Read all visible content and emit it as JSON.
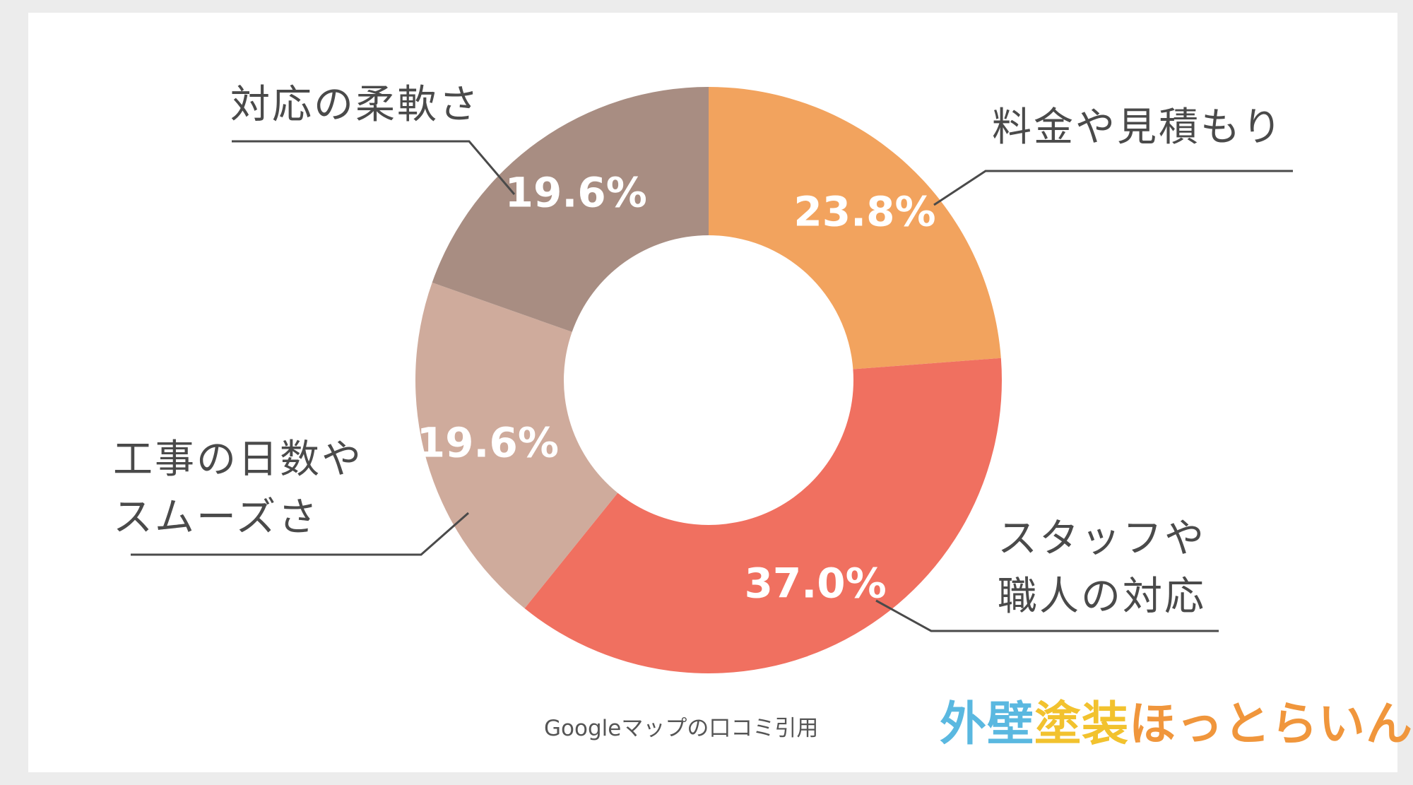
{
  "colors": {
    "background": "#ececec",
    "panel": "#ffffff",
    "leader_line": "#4a4a4a"
  },
  "chart_data": {
    "type": "pie",
    "donut": true,
    "slices": [
      {
        "label": "料金や見積もり",
        "value": 23.8,
        "value_label": "23.8%",
        "color": "#f2a35e"
      },
      {
        "label": "スタッフや\n職人の対応",
        "value": 37.0,
        "value_label": "37.0%",
        "color": "#f07060"
      },
      {
        "label": "工事の日数や\nスムーズさ",
        "value": 19.6,
        "value_label": "19.6%",
        "color": "#cfab9c"
      },
      {
        "label": "対応の柔軟さ",
        "value": 19.6,
        "value_label": "19.6%",
        "color": "#a88d82"
      }
    ],
    "source": "Googleマップの口コミ引用"
  },
  "logo": {
    "text": "外壁塗装ほっとらいん",
    "parts": [
      {
        "text": "外壁",
        "color": "#5ab8e0"
      },
      {
        "text": "塗装",
        "color": "#f2c22e"
      },
      {
        "text": "ほっとらいん",
        "color": "#f0963c"
      }
    ]
  }
}
